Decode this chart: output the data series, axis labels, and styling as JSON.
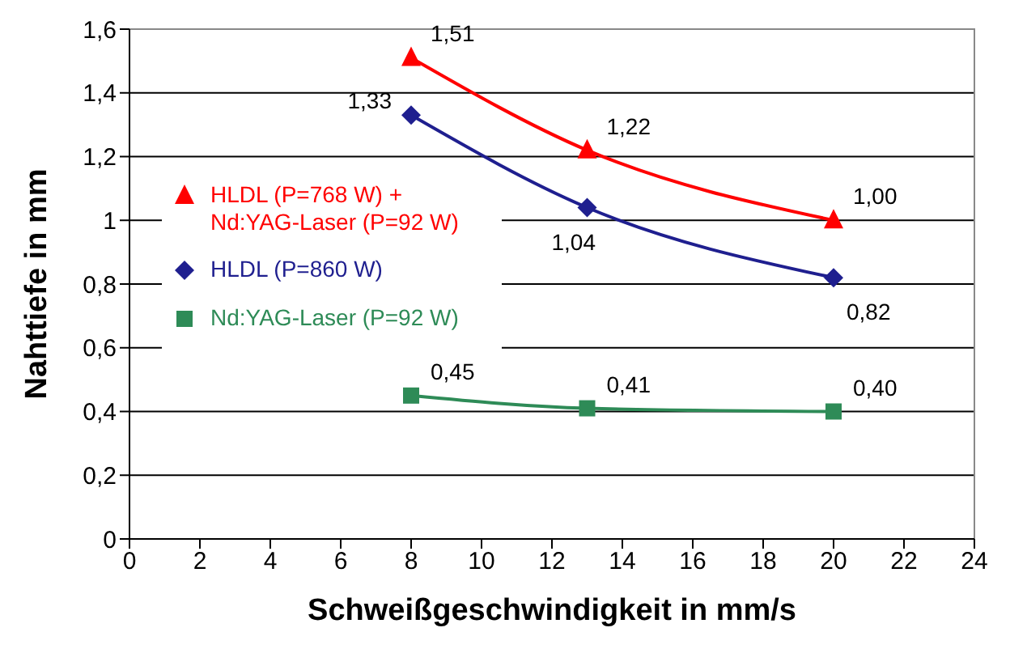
{
  "chart_data": {
    "type": "line",
    "xlabel": "Schweißgeschwindigkeit in mm/s",
    "ylabel": "Nahttiefe in mm",
    "xlim": [
      0,
      24
    ],
    "xticks": [
      0,
      2,
      4,
      6,
      8,
      10,
      12,
      14,
      16,
      18,
      20,
      22,
      24
    ],
    "ylim": [
      0,
      1.6
    ],
    "yticks": [
      0,
      {
        "value": 0.2,
        "label": "0,2"
      },
      {
        "value": 0.4,
        "label": "0,4"
      },
      {
        "value": 0.6,
        "label": "0,6"
      },
      {
        "value": 0.8,
        "label": "0,8"
      },
      1,
      {
        "value": 1.2,
        "label": "1,2"
      },
      {
        "value": 1.4,
        "label": "1,4"
      },
      {
        "value": 1.6,
        "label": "1,6"
      }
    ],
    "x": [
      8,
      13,
      20
    ],
    "series": [
      {
        "name": "HLDL (P=768 W) + Nd:YAG-Laser (P=92 W)",
        "color": "#ff0000",
        "marker": "triangle",
        "values": [
          1.51,
          1.22,
          1.0
        ],
        "value_labels": [
          "1,51",
          "1,22",
          "1,00"
        ]
      },
      {
        "name": "HLDL (P=860 W)",
        "color": "#1f1f8f",
        "marker": "diamond",
        "values": [
          1.33,
          1.04,
          0.82
        ],
        "value_labels": [
          "1,33",
          "1,04",
          "0,82"
        ]
      },
      {
        "name": "Nd:YAG-Laser (P=92 W)",
        "color": "#2e8b57",
        "marker": "square",
        "values": [
          0.45,
          0.41,
          0.4
        ],
        "value_labels": [
          "0,45",
          "0,41",
          "0,40"
        ]
      }
    ],
    "grid": "y",
    "legend": "left",
    "line_style": "solid"
  }
}
